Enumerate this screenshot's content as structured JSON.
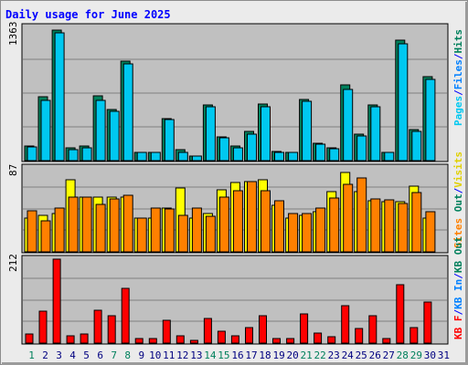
{
  "chart_data": [
    {
      "type": "bar",
      "title": "Daily usage for June 2025",
      "categories": [
        "1",
        "2",
        "3",
        "4",
        "5",
        "6",
        "7",
        "8",
        "9",
        "10",
        "11",
        "12",
        "13",
        "14",
        "15",
        "16",
        "17",
        "18",
        "19",
        "20",
        "21",
        "22",
        "23",
        "24",
        "25",
        "26",
        "27",
        "28",
        "29",
        "30",
        "31"
      ],
      "weekend_days": [
        "1",
        "7",
        "8",
        "14",
        "15",
        "21",
        "22",
        "28",
        "29"
      ],
      "ymax_label": "1363",
      "ylim": [
        0,
        1363
      ],
      "grid": true,
      "legend_right": [
        "Pages",
        "/",
        "Files",
        "/",
        "Hits"
      ],
      "series": [
        {
          "name": "Hits",
          "color": "#00805c",
          "values": [
            152,
            655,
            1331,
            128,
            146,
            660,
            524,
            1020,
            85,
            85,
            432,
            108,
            43,
            570,
            239,
            145,
            300,
            580,
            90,
            85,
            624,
            182,
            128,
            777,
            270,
            570,
            85,
            1235,
            320,
            856,
            0
          ]
        },
        {
          "name": "Files",
          "color": "#00c8f0",
          "values": [
            140,
            620,
            1306,
            116,
            133,
            614,
            500,
            985,
            85,
            85,
            420,
            85,
            43,
            550,
            230,
            133,
            275,
            555,
            85,
            85,
            610,
            165,
            120,
            730,
            250,
            550,
            85,
            1196,
            295,
            830,
            0
          ]
        }
      ]
    },
    {
      "type": "bar",
      "ymax_label": "87",
      "ylim": [
        0,
        87
      ],
      "grid": true,
      "legend_right": [
        "Visits",
        "/",
        "Out",
        "Sites"
      ],
      "series": [
        {
          "name": "Visits",
          "color": "#ffff00",
          "values": [
            35,
            38,
            40,
            75,
            57,
            57,
            57,
            57,
            35,
            35,
            45,
            66,
            35,
            40,
            64,
            72,
            73,
            75,
            48,
            35,
            38,
            42,
            62,
            82,
            62,
            53,
            52,
            52,
            68,
            35,
            0
          ]
        },
        {
          "name": "Sites",
          "color": "#ff8000",
          "values": [
            43,
            32,
            45,
            57,
            57,
            49,
            55,
            59,
            35,
            45,
            44,
            38,
            45,
            37,
            57,
            63,
            73,
            63,
            53,
            40,
            40,
            45,
            56,
            70,
            77,
            55,
            54,
            50,
            61,
            42,
            0
          ]
        }
      ]
    },
    {
      "type": "bar",
      "ymax_label": "212",
      "ylim": [
        0,
        212
      ],
      "grid": true,
      "legend_right": [
        "KB F",
        "/",
        "KB In",
        "/",
        "KB Out"
      ],
      "series": [
        {
          "name": "KB F",
          "color": "#ff0000",
          "values": [
            22,
            80,
            212,
            19,
            22,
            82,
            69,
            139,
            12,
            12,
            58,
            18,
            8,
            62,
            31,
            18,
            40,
            70,
            12,
            12,
            74,
            26,
            16,
            94,
            36,
            70,
            12,
            148,
            40,
            104,
            0
          ]
        }
      ]
    }
  ],
  "colors": {
    "plot_bg": "#c0c0c0",
    "grid": "#808080",
    "title": "#0000ff",
    "weekend_label": "#00805c",
    "weekday_label": "#0000ff",
    "separator": "#0000ff"
  }
}
